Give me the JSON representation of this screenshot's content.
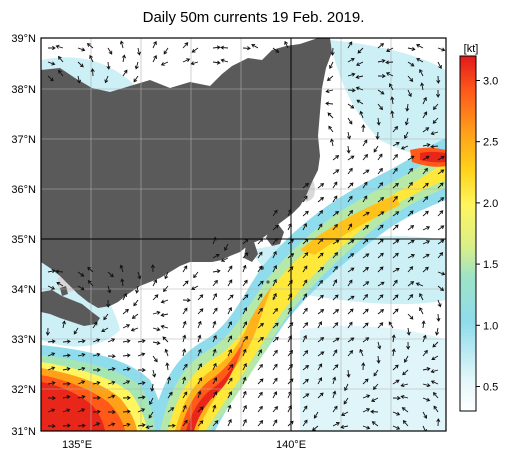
{
  "title": "Daily 50m currents 19 Feb. 2019.",
  "unit_label": "[kt]",
  "lat_labels": [
    "39°N",
    "38°N",
    "37°N",
    "36°N",
    "35°N",
    "34°N",
    "33°N",
    "32°N",
    "31°N"
  ],
  "lon_labels": [
    "135°E",
    "140°E"
  ],
  "colorbar": {
    "min": 0.3,
    "max": 3.2,
    "ticks": [
      "0.5",
      "1.0",
      "1.5",
      "2.0",
      "2.5",
      "3.0"
    ],
    "tick_values": [
      0.5,
      1.0,
      1.5,
      2.0,
      2.5,
      3.0
    ],
    "colors": [
      "#ffffff",
      "#d8f3f7",
      "#8fdcec",
      "#b6e8a8",
      "#fff55e",
      "#ffd21a",
      "#ff8c1a",
      "#e8261a"
    ]
  },
  "land_color": "#5a5a5a",
  "shelf_color": "#d8d8d8"
}
